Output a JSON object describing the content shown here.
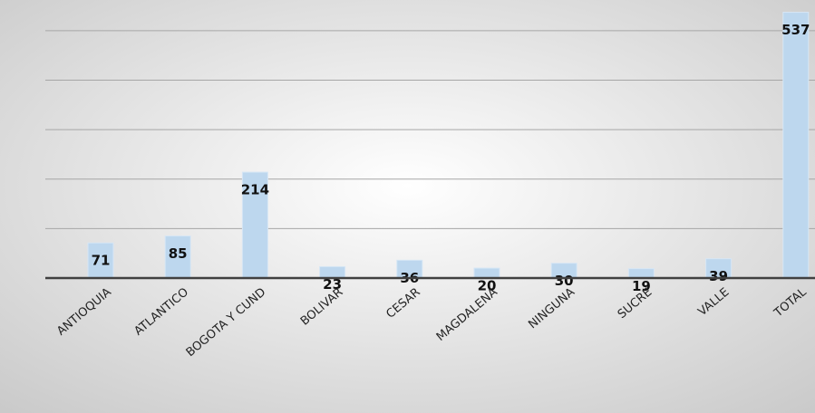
{
  "chart_data": {
    "type": "bar",
    "categories": [
      "ANTIOQUIA",
      "ATLANTICO",
      "BOGOTA Y CUND",
      "BOLIVAR",
      "CESAR",
      "MAGDALENA",
      "NINGUNA",
      "SUCRE",
      "VALLE",
      "TOTAL"
    ],
    "values": [
      71,
      85,
      214,
      23,
      36,
      20,
      30,
      19,
      39,
      537
    ],
    "color": "#bdd7ee",
    "ylim": [
      0,
      550
    ],
    "yticks": [
      0,
      100,
      200,
      300,
      400,
      500
    ],
    "grid": true
  }
}
